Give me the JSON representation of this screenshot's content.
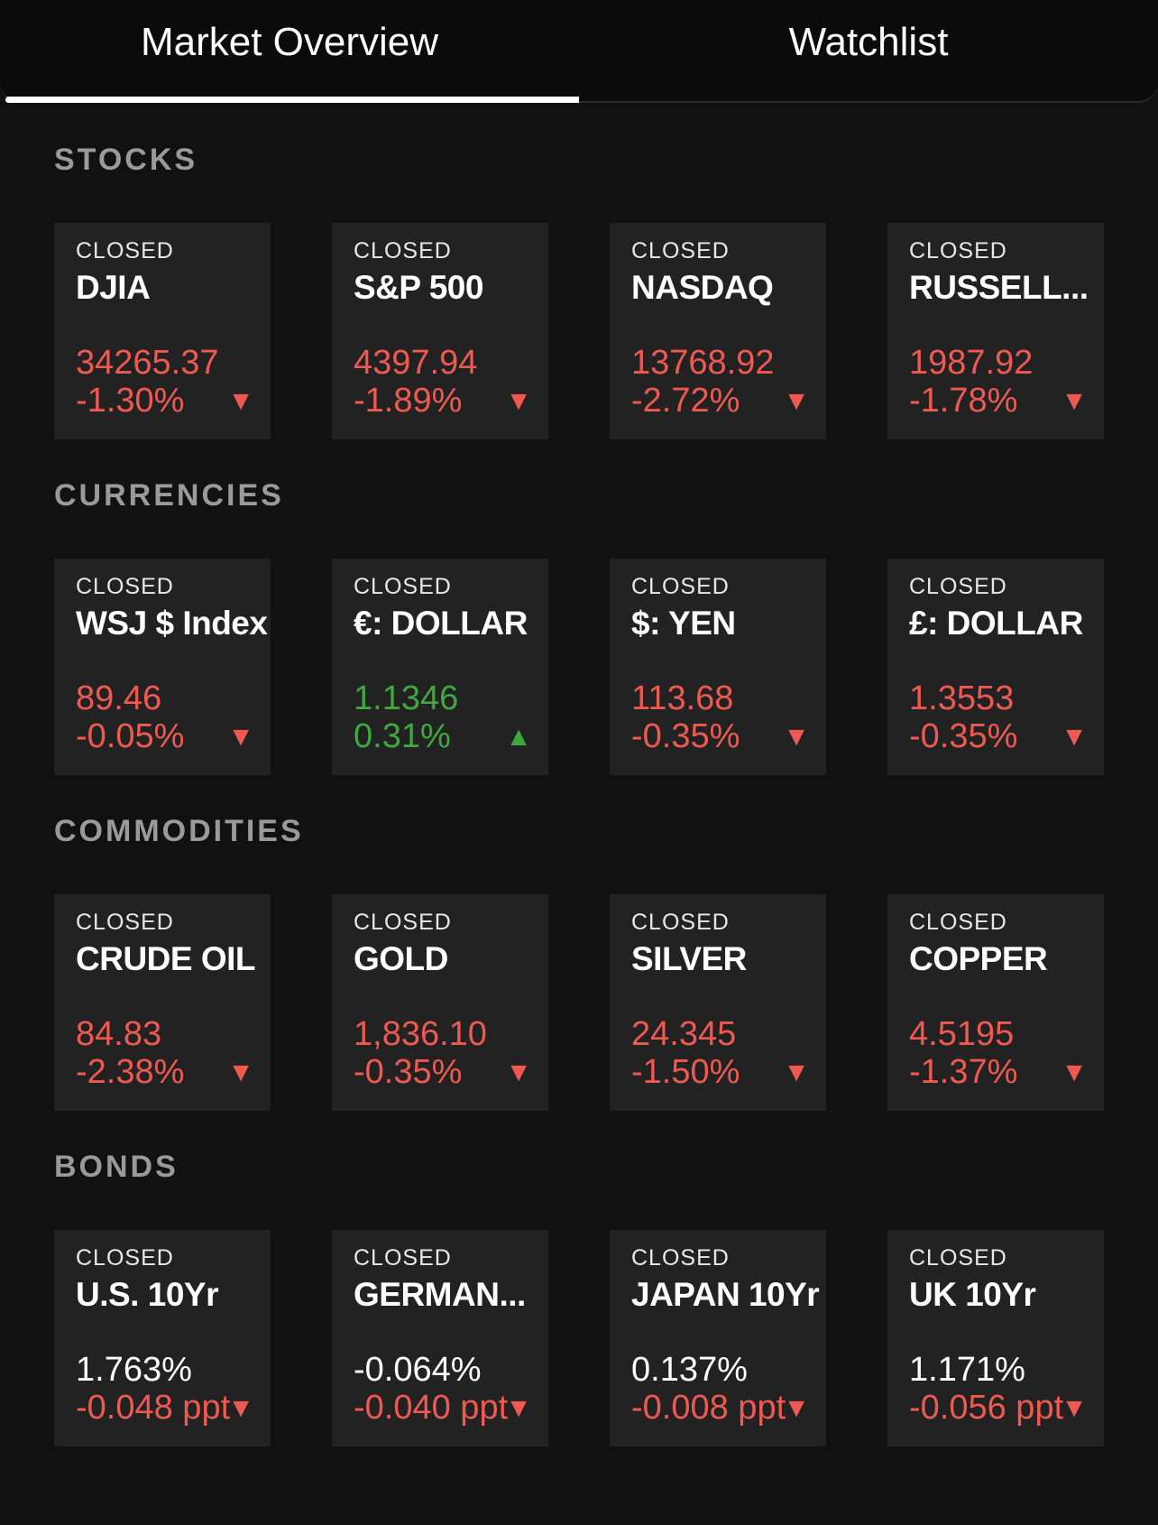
{
  "tabs": [
    {
      "label": "Market Overview",
      "active": true
    },
    {
      "label": "Watchlist",
      "active": false
    }
  ],
  "colors": {
    "down": "#ee5a52",
    "up": "#3ea83e",
    "background": "#111111",
    "card": "#222222"
  },
  "sections": [
    {
      "heading": "STOCKS",
      "items": [
        {
          "status": "CLOSED",
          "name": "DJIA",
          "value": "34265.37",
          "change": "-1.30%",
          "direction": "down"
        },
        {
          "status": "CLOSED",
          "name": "S&P 500",
          "value": "4397.94",
          "change": "-1.89%",
          "direction": "down"
        },
        {
          "status": "CLOSED",
          "name": "NASDAQ",
          "value": "13768.92",
          "change": "-2.72%",
          "direction": "down"
        },
        {
          "status": "CLOSED",
          "name": "RUSSELL...",
          "value": "1987.92",
          "change": "-1.78%",
          "direction": "down"
        }
      ]
    },
    {
      "heading": "CURRENCIES",
      "items": [
        {
          "status": "CLOSED",
          "name": "WSJ $ Index",
          "value": "89.46",
          "change": "-0.05%",
          "direction": "down"
        },
        {
          "status": "CLOSED",
          "name": "€: DOLLAR",
          "value": "1.1346",
          "change": "0.31%",
          "direction": "up"
        },
        {
          "status": "CLOSED",
          "name": "$: YEN",
          "value": "113.68",
          "change": "-0.35%",
          "direction": "down"
        },
        {
          "status": "CLOSED",
          "name": "£: DOLLAR",
          "value": "1.3553",
          "change": "-0.35%",
          "direction": "down"
        }
      ]
    },
    {
      "heading": "COMMODITIES",
      "items": [
        {
          "status": "CLOSED",
          "name": "CRUDE OIL",
          "value": "84.83",
          "change": "-2.38%",
          "direction": "down"
        },
        {
          "status": "CLOSED",
          "name": "GOLD",
          "value": "1,836.10",
          "change": "-0.35%",
          "direction": "down"
        },
        {
          "status": "CLOSED",
          "name": "SILVER",
          "value": "24.345",
          "change": "-1.50%",
          "direction": "down"
        },
        {
          "status": "CLOSED",
          "name": "COPPER",
          "value": "4.5195",
          "change": "-1.37%",
          "direction": "down"
        }
      ]
    },
    {
      "heading": "BONDS",
      "items": [
        {
          "status": "CLOSED",
          "name": "U.S. 10Yr",
          "value": "1.763%",
          "change": "-0.048 ppt",
          "direction": "down",
          "value_neutral": true
        },
        {
          "status": "CLOSED",
          "name": "GERMAN...",
          "value": "-0.064%",
          "change": "-0.040 ppt",
          "direction": "down",
          "value_neutral": true
        },
        {
          "status": "CLOSED",
          "name": "JAPAN 10Yr",
          "value": "0.137%",
          "change": "-0.008 ppt",
          "direction": "down",
          "value_neutral": true
        },
        {
          "status": "CLOSED",
          "name": "UK 10Yr",
          "value": "1.171%",
          "change": "-0.056 ppt",
          "direction": "down",
          "value_neutral": true
        }
      ]
    }
  ]
}
